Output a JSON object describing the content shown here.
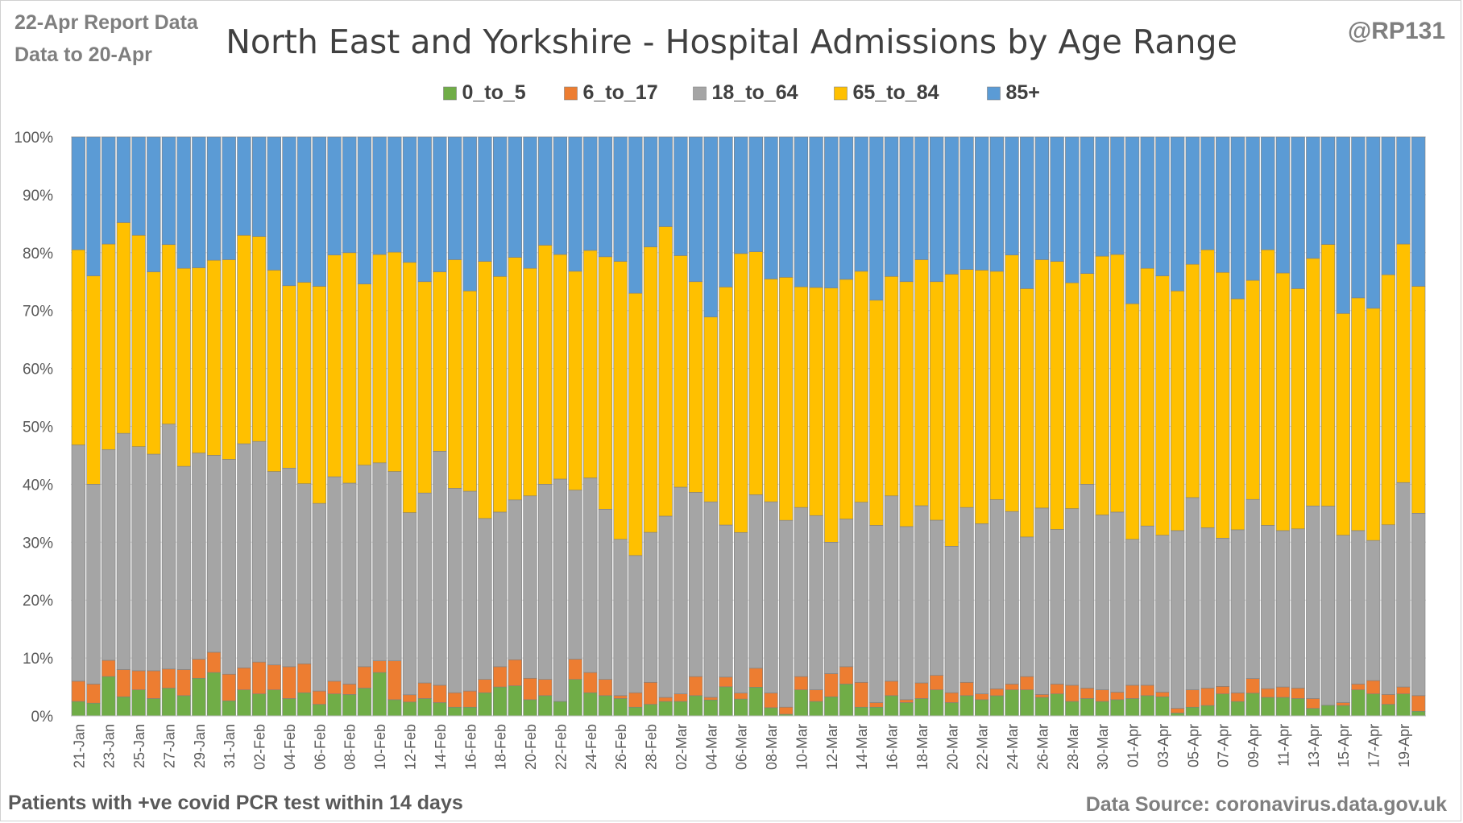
{
  "header": {
    "report_line": "22-Apr Report Data",
    "data_line": "Data to 20-Apr",
    "title": "North East and Yorkshire - Hospital Admissions by Age Range",
    "handle": "@RP131"
  },
  "footer": {
    "note": "Patients with  +ve covid PCR test within 14 days",
    "source": "Data Source: coronavirus.data.gov.uk"
  },
  "chart_data": {
    "type": "bar",
    "stacked": true,
    "normalized": true,
    "title": "North East and Yorkshire - Hospital Admissions by Age Range",
    "ylim": [
      0,
      100
    ],
    "y_ticks": [
      "0%",
      "10%",
      "20%",
      "30%",
      "40%",
      "50%",
      "60%",
      "70%",
      "80%",
      "90%",
      "100%"
    ],
    "grid": true,
    "legend_position": "top",
    "categories": [
      "21-Jan",
      "22-Jan",
      "23-Jan",
      "24-Jan",
      "25-Jan",
      "26-Jan",
      "27-Jan",
      "28-Jan",
      "29-Jan",
      "30-Jan",
      "31-Jan",
      "01-Feb",
      "02-Feb",
      "03-Feb",
      "04-Feb",
      "05-Feb",
      "06-Feb",
      "07-Feb",
      "08-Feb",
      "09-Feb",
      "10-Feb",
      "11-Feb",
      "12-Feb",
      "13-Feb",
      "14-Feb",
      "15-Feb",
      "16-Feb",
      "17-Feb",
      "18-Feb",
      "19-Feb",
      "20-Feb",
      "21-Feb",
      "22-Feb",
      "23-Feb",
      "24-Feb",
      "25-Feb",
      "26-Feb",
      "27-Feb",
      "28-Feb",
      "01-Mar",
      "02-Mar",
      "03-Mar",
      "04-Mar",
      "05-Mar",
      "06-Mar",
      "07-Mar",
      "08-Mar",
      "09-Mar",
      "10-Mar",
      "11-Mar",
      "12-Mar",
      "13-Mar",
      "14-Mar",
      "15-Mar",
      "16-Mar",
      "17-Mar",
      "18-Mar",
      "19-Mar",
      "20-Mar",
      "21-Mar",
      "22-Mar",
      "23-Mar",
      "24-Mar",
      "25-Mar",
      "26-Mar",
      "27-Mar",
      "28-Mar",
      "29-Mar",
      "30-Mar",
      "31-Mar",
      "01-Apr",
      "02-Apr",
      "03-Apr",
      "04-Apr",
      "05-Apr",
      "06-Apr",
      "07-Apr",
      "08-Apr",
      "09-Apr",
      "10-Apr",
      "11-Apr",
      "12-Apr",
      "13-Apr",
      "14-Apr",
      "15-Apr",
      "16-Apr",
      "17-Apr",
      "18-Apr",
      "19-Apr",
      "20-Apr"
    ],
    "tick_labels": [
      "21-Jan",
      "23-Jan",
      "25-Jan",
      "27-Jan",
      "29-Jan",
      "31-Jan",
      "02-Feb",
      "04-Feb",
      "06-Feb",
      "08-Feb",
      "10-Feb",
      "12-Feb",
      "14-Feb",
      "16-Feb",
      "18-Feb",
      "20-Feb",
      "22-Feb",
      "24-Feb",
      "26-Feb",
      "28-Feb",
      "02-Mar",
      "04-Mar",
      "06-Mar",
      "08-Mar",
      "10-Mar",
      "12-Mar",
      "14-Mar",
      "16-Mar",
      "18-Mar",
      "20-Mar",
      "22-Mar",
      "24-Mar",
      "26-Mar",
      "28-Mar",
      "30-Mar",
      "01-Apr",
      "03-Apr",
      "05-Apr",
      "07-Apr",
      "09-Apr",
      "11-Apr",
      "13-Apr",
      "15-Apr",
      "17-Apr",
      "19-Apr"
    ],
    "series": [
      {
        "name": "0_to_5",
        "color": "#70ad47",
        "values": [
          2.5,
          2.2,
          6.8,
          3.3,
          4.5,
          3.0,
          4.8,
          3.5,
          6.5,
          7.5,
          2.6,
          4.5,
          3.8,
          4.5,
          3.0,
          4.0,
          2.0,
          3.8,
          3.7,
          4.8,
          7.5,
          2.8,
          2.3,
          3.0,
          2.3,
          1.5,
          1.5,
          4.0,
          5.0,
          5.2,
          2.8,
          3.5,
          2.5,
          6.3,
          4.0,
          3.5,
          3.0,
          1.5,
          2.0,
          2.5,
          2.5,
          3.5,
          3.0,
          4.5,
          2.8,
          5.0,
          1.5,
          0.3,
          4.5,
          2.5,
          3.3,
          5.5,
          1.5,
          1.5,
          3.5,
          2.3,
          3.0,
          4.5,
          2.3,
          3.5,
          2.8,
          3.5,
          4.5,
          4.5,
          3.2,
          3.8,
          2.5,
          3.0,
          2.5,
          2.8,
          3.0,
          3.5,
          3.3,
          0.5,
          1.5,
          1.8,
          3.8,
          2.5,
          4.2,
          3.2,
          3.2,
          3.0,
          1.3,
          1.8,
          1.8,
          4.5,
          3.8,
          2.0,
          3.8,
          0.8
        ]
      },
      {
        "name": "6_to_17",
        "color": "#ed7d31",
        "values": [
          3.5,
          3.3,
          2.8,
          4.7,
          3.3,
          4.8,
          3.3,
          4.5,
          3.3,
          3.5,
          4.6,
          3.8,
          5.5,
          4.3,
          5.5,
          5.0,
          2.3,
          2.2,
          1.8,
          3.7,
          2.0,
          6.7,
          1.2,
          2.7,
          3.0,
          2.5,
          2.8,
          2.3,
          3.5,
          4.5,
          3.7,
          2.8,
          0.0,
          3.5,
          3.5,
          2.8,
          0.5,
          2.5,
          3.8,
          0.7,
          1.3,
          3.3,
          0.5,
          1.5,
          1.0,
          3.3,
          2.7,
          1.3,
          2.3,
          2.0,
          4.0,
          3.0,
          4.3,
          0.8,
          2.5,
          0.5,
          2.7,
          2.5,
          1.7,
          2.3,
          1.0,
          1.2,
          1.0,
          2.3,
          0.5,
          1.7,
          2.8,
          1.8,
          2.0,
          1.3,
          2.3,
          1.8,
          0.8,
          0.8,
          3.0,
          3.0,
          1.3,
          1.5,
          2.7,
          1.5,
          1.8,
          1.8,
          1.7,
          0.0,
          0.5,
          1.0,
          2.3,
          1.7,
          1.2,
          2.7
        ]
      },
      {
        "name": "18_to_64",
        "color": "#a5a5a5",
        "values": [
          40.8,
          34.5,
          36.4,
          40.8,
          38.7,
          37.4,
          42.3,
          35.1,
          35.6,
          34.0,
          37.1,
          38.7,
          38.1,
          33.4,
          34.3,
          31.1,
          32.4,
          35.3,
          34.7,
          34.8,
          34.2,
          32.7,
          30.2,
          32.8,
          40.4,
          35.3,
          34.5,
          27.8,
          26.7,
          27.6,
          31.5,
          33.7,
          38.4,
          29.2,
          33.6,
          29.4,
          27.0,
          23.7,
          25.9,
          31.3,
          35.7,
          31.8,
          36.8,
          23.5,
          26.7,
          30.2,
          35.0,
          34.2,
          29.2,
          30.1,
          22.7,
          25.5,
          31.1,
          30.6,
          32.0,
          29.9,
          30.6,
          26.8,
          25.3,
          30.2,
          29.4,
          32.8,
          29.8,
          24.1,
          32.2,
          26.7,
          30.5,
          35.2,
          30.2,
          31.1,
          25.2,
          27.5,
          27.1,
          30.7,
          33.2,
          27.7,
          25.6,
          28.3,
          33.1,
          28.2,
          27.0,
          27.5,
          33.3,
          33.7,
          28.9,
          26.5,
          24.2,
          29.3,
          35.3,
          31.5
        ]
      },
      {
        "name": "65_to_84",
        "color": "#ffc000",
        "values": [
          33.7,
          36.0,
          35.5,
          36.4,
          36.5,
          31.5,
          31.0,
          34.2,
          32.0,
          33.7,
          34.5,
          36.0,
          35.4,
          34.8,
          31.5,
          34.8,
          37.5,
          38.3,
          39.8,
          31.3,
          36.0,
          37.9,
          41.5,
          36.5,
          31.0,
          39.5,
          34.6,
          44.4,
          40.7,
          41.9,
          39.3,
          41.3,
          38.8,
          37.8,
          39.3,
          43.6,
          48.0,
          45.3,
          49.3,
          50.0,
          40.0,
          36.4,
          34.8,
          36.8,
          46.4,
          42.3,
          40.8,
          44.5,
          38.1,
          39.4,
          43.9,
          41.4,
          39.9,
          38.9,
          37.9,
          42.3,
          42.5,
          41.2,
          47.0,
          41.1,
          43.8,
          39.6,
          44.3,
          42.9,
          42.9,
          46.3,
          39.0,
          36.4,
          44.7,
          44.5,
          40.7,
          44.5,
          44.8,
          41.4,
          40.3,
          48.0,
          45.9,
          40.1,
          40.5,
          47.6,
          44.5,
          41.5,
          42.8,
          44.3,
          38.3,
          40.2,
          40.1,
          43.2,
          41.2,
          39.2
        ]
      },
      {
        "name": "85+",
        "color": "#5b9bd5",
        "values": [
          19.5,
          24.0,
          18.5,
          14.8,
          17.0,
          23.3,
          18.6,
          22.7,
          22.6,
          21.3,
          21.2,
          17.0,
          17.2,
          23.0,
          25.7,
          25.1,
          25.8,
          20.4,
          20.0,
          25.4,
          20.3,
          19.9,
          20.8,
          25.0,
          23.3,
          21.2,
          26.6,
          21.5,
          24.1,
          20.8,
          22.7,
          18.7,
          20.3,
          23.2,
          19.6,
          20.7,
          21.5,
          27.0,
          19.0,
          15.5,
          20.5,
          25.0,
          33.9,
          23.2,
          19.4,
          20.0,
          26.0,
          25.7,
          25.9,
          26.0,
          26.1,
          24.6,
          23.2,
          28.2,
          24.1,
          25.0,
          21.2,
          25.0,
          23.7,
          22.9,
          23.0,
          23.3,
          20.4,
          26.2,
          21.2,
          21.5,
          25.2,
          23.6,
          20.6,
          20.3,
          28.8,
          22.7,
          24.0,
          26.6,
          22.0,
          19.5,
          23.4,
          28.1,
          26.5,
          19.5,
          23.5,
          26.2,
          21.0,
          18.2,
          30.5,
          27.8,
          29.6,
          23.8,
          18.5,
          25.8
        ]
      }
    ]
  }
}
